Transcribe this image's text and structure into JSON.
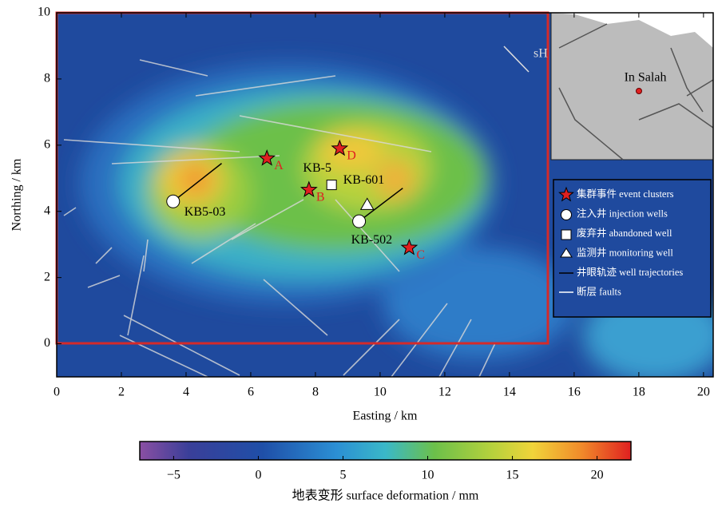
{
  "chart_data": {
    "type": "map",
    "xlabel": "Easting / km",
    "ylabel": "Northing / km",
    "xlim": [
      0,
      20.3
    ],
    "ylim": [
      -1,
      10
    ],
    "xticks": [
      0,
      2,
      4,
      6,
      8,
      10,
      12,
      14,
      16,
      18,
      20
    ],
    "yticks": [
      0,
      2,
      4,
      6,
      8,
      10
    ],
    "events": [
      {
        "label": "A",
        "x": 6.5,
        "y": 5.6
      },
      {
        "label": "B",
        "x": 7.8,
        "y": 4.65
      },
      {
        "label": "C",
        "x": 10.9,
        "y": 2.9
      },
      {
        "label": "D",
        "x": 8.75,
        "y": 5.9
      }
    ],
    "injection_wells": [
      {
        "label": "KB5-03",
        "x": 3.6,
        "y": 4.3,
        "trajectory_end": [
          5.1,
          5.45
        ]
      },
      {
        "label": "KB-502",
        "x": 9.35,
        "y": 3.7,
        "trajectory_end": [
          10.7,
          4.7
        ]
      }
    ],
    "abandoned_wells": [
      {
        "label": "KB-5",
        "x": 8.5,
        "y": 4.8
      }
    ],
    "monitoring_wells": [
      {
        "label": "KB-601",
        "x": 9.6,
        "y": 4.2
      }
    ],
    "stress_label": "sH",
    "inset_label": "In Salah",
    "legend": [
      "集群事件 event clusters",
      "注入井 injection wells",
      "废弃井 abandoned well",
      "监测井 monitoring well",
      "井眼轨迹 well trajectories",
      "断层 faults"
    ],
    "colorbar": {
      "label": "地表变形 surface deformation / mm",
      "lim": [
        -7,
        22
      ],
      "ticks": [
        {
          "value": -5,
          "label": "−5"
        },
        0,
        5,
        10,
        15,
        20
      ]
    }
  }
}
